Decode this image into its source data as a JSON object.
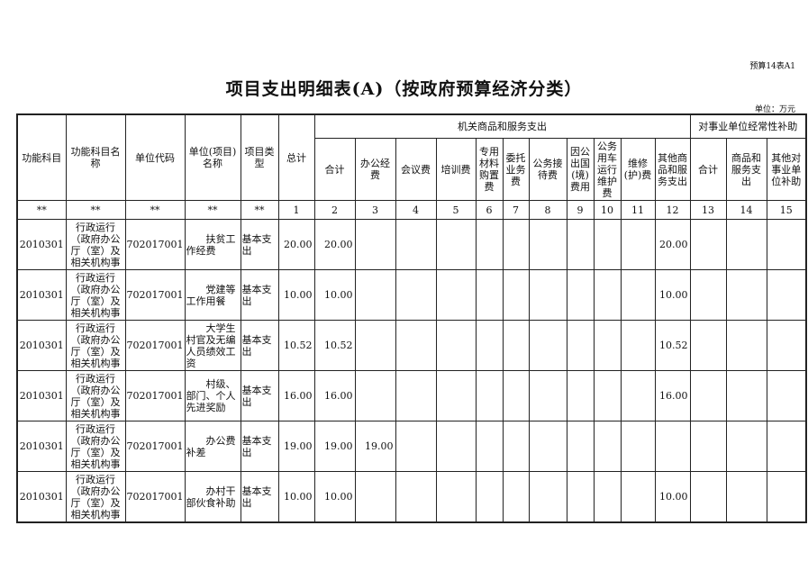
{
  "doc_code": "预算14表A1",
  "title": "项目支出明细表(A)（按政府预算经济分类）",
  "unit": "单位：万元",
  "headers": {
    "func_code": "功能科目",
    "func_name": "功能科目名称",
    "unit_code": "单位代码",
    "unit_name": "单位(项目)名称",
    "proj_type": "项目类型",
    "total": "总计",
    "group1": "机关商品和服务支出",
    "group2": "对事业单位经常性补助",
    "sub": [
      "合计",
      "办公经费",
      "会议费",
      "培训费",
      "专用材料购置费",
      "委托业务费",
      "公务接待费",
      "因公出国(境)费用",
      "公务用车运行维护费",
      "维修(护)费",
      "其他商品和服务支出",
      "合计",
      "商品和服务支出",
      "其他对事业单位补助"
    ]
  },
  "numbers": [
    "**",
    "**",
    "**",
    "**",
    "**",
    "1",
    "2",
    "3",
    "4",
    "5",
    "6",
    "7",
    "8",
    "9",
    "10",
    "11",
    "12",
    "13",
    "14",
    "15"
  ],
  "rows": [
    {
      "code": "2010301",
      "name": "行政运行（政府办公厅（室）及相关机构事",
      "unit": "702017001",
      "project": "扶贫工作经费",
      "type": "基本支出",
      "total": "20.00",
      "sum": "20.00",
      "office": "",
      "other": "20.00"
    },
    {
      "code": "2010301",
      "name": "行政运行（政府办公厅（室）及相关机构事",
      "unit": "702017001",
      "project": "党建等工作用餐",
      "type": "基本支出",
      "total": "10.00",
      "sum": "10.00",
      "office": "",
      "other": "10.00"
    },
    {
      "code": "2010301",
      "name": "行政运行（政府办公厅（室）及相关机构事",
      "unit": "702017001",
      "project": "大学生村官及无编人员绩效工资",
      "type": "基本支出",
      "total": "10.52",
      "sum": "10.52",
      "office": "",
      "other": "10.52"
    },
    {
      "code": "2010301",
      "name": "行政运行（政府办公厅（室）及相关机构事",
      "unit": "702017001",
      "project": "村级、部门、个人先进奖励",
      "type": "基本支出",
      "total": "16.00",
      "sum": "16.00",
      "office": "",
      "other": "16.00"
    },
    {
      "code": "2010301",
      "name": "行政运行（政府办公厅（室）及相关机构事",
      "unit": "702017001",
      "project": "办公费补差",
      "type": "基本支出",
      "total": "19.00",
      "sum": "19.00",
      "office": "19.00",
      "other": ""
    },
    {
      "code": "2010301",
      "name": "行政运行（政府办公厅（室）及相关机构事",
      "unit": "702017001",
      "project": "办村干部伙食补助",
      "type": "基本支出",
      "total": "10.00",
      "sum": "10.00",
      "office": "",
      "other": "10.00"
    }
  ]
}
